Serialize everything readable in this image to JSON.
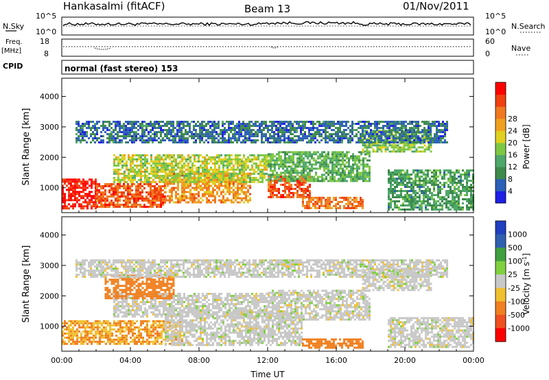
{
  "header": {
    "station": "Hankasalmi (fitACF)",
    "beam": "Beam 13",
    "date": "01/Nov/2011"
  },
  "noise_panel": {
    "left_label": "N.Sky",
    "right_label": "N.Search",
    "left_ticks": [
      "10^5",
      "10^0"
    ],
    "right_ticks": [
      "10^5",
      "10^0"
    ]
  },
  "freq_panel": {
    "left_label_1": "Freq.",
    "left_label_2": "[MHz]",
    "right_label": "Nave",
    "left_ticks": [
      "18",
      "8"
    ],
    "right_ticks": [
      "60",
      "0"
    ]
  },
  "cpid": {
    "label": "CPID",
    "text": "normal (fast stereo) 153"
  },
  "colors": {
    "power": [
      "#1f1fe6",
      "#2b5fb8",
      "#3d8a4c",
      "#4fa86b",
      "#7ec842",
      "#e0d020",
      "#f0a020",
      "#f07820",
      "#f04010",
      "#ff0000"
    ],
    "velocity": [
      "#ff0000",
      "#f05020",
      "#f08020",
      "#f0c030",
      "#c8c8c8",
      "#80d040",
      "#40a040",
      "#3060b0",
      "#2040c0"
    ]
  },
  "chart_data": [
    {
      "type": "heatmap",
      "title": "",
      "xlabel": "",
      "ylabel": "Slant Range [km]",
      "xlim": [
        0,
        24
      ],
      "ylim": [
        180,
        4600
      ],
      "x_ticks": [
        0,
        4,
        8,
        12,
        16,
        20,
        24
      ],
      "y_ticks": [
        1000,
        2000,
        3000,
        4000
      ],
      "colorbar": {
        "label": "Power [dB]",
        "ticks": [
          "4",
          "8",
          "12",
          "16",
          "20",
          "24",
          "28"
        ],
        "range": [
          0,
          32
        ]
      },
      "regions": [
        {
          "t0": 0.0,
          "t1": 2.0,
          "r0": 350,
          "r1": 1300,
          "value": 30
        },
        {
          "t0": 2.0,
          "t1": 6.0,
          "r0": 400,
          "r1": 1150,
          "value": 26
        },
        {
          "t0": 6.0,
          "t1": 11.0,
          "r0": 500,
          "r1": 1500,
          "value": 22
        },
        {
          "t0": 3.0,
          "t1": 12.0,
          "r0": 1200,
          "r1": 2100,
          "value": 16
        },
        {
          "t0": 12.0,
          "t1": 14.5,
          "r0": 700,
          "r1": 1400,
          "value": 26
        },
        {
          "t0": 14.0,
          "t1": 17.5,
          "r0": 300,
          "r1": 700,
          "value": 24
        },
        {
          "t0": 12.0,
          "t1": 18.0,
          "r0": 1200,
          "r1": 2200,
          "value": 12
        },
        {
          "t0": 17.5,
          "t1": 21.5,
          "r0": 2200,
          "r1": 2900,
          "value": 14
        },
        {
          "t0": 0.8,
          "t1": 22.5,
          "r0": 2500,
          "r1": 3200,
          "value": 6
        },
        {
          "t0": 19.0,
          "t1": 24.0,
          "r0": 300,
          "r1": 1600,
          "value": 10
        }
      ]
    },
    {
      "type": "heatmap",
      "title": "",
      "xlabel": "Time UT",
      "ylabel": "Slant Range [km]",
      "xlim": [
        0,
        24
      ],
      "ylim": [
        180,
        4600
      ],
      "x_ticks": [
        "00:00",
        "04:00",
        "08:00",
        "12:00",
        "16:00",
        "20:00",
        "00:00"
      ],
      "y_ticks": [
        1000,
        2000,
        3000,
        4000
      ],
      "colorbar": {
        "label": "Velocity [m s^-1]",
        "ticks": [
          "1000",
          "500",
          "100",
          "25",
          "-25",
          "-100",
          "-500",
          "-1000"
        ]
      },
      "regions": [
        {
          "t0": 0.0,
          "t1": 7.0,
          "r0": 400,
          "r1": 1200,
          "value": -100
        },
        {
          "t0": 6.0,
          "t1": 14.0,
          "r0": 400,
          "r1": 1500,
          "value": 0
        },
        {
          "t0": 3.0,
          "t1": 12.0,
          "r0": 1300,
          "r1": 2100,
          "value": 0
        },
        {
          "t0": 12.0,
          "t1": 18.0,
          "r0": 1200,
          "r1": 2200,
          "value": 0
        },
        {
          "t0": 14.0,
          "t1": 17.5,
          "r0": 300,
          "r1": 600,
          "value": -300
        },
        {
          "t0": 17.5,
          "t1": 21.5,
          "r0": 2200,
          "r1": 2900,
          "value": 0
        },
        {
          "t0": 2.5,
          "t1": 6.5,
          "r0": 1900,
          "r1": 2700,
          "value": -300
        },
        {
          "t0": 0.8,
          "t1": 22.5,
          "r0": 2600,
          "r1": 3200,
          "value": 0
        },
        {
          "t0": 19.0,
          "t1": 24.0,
          "r0": 300,
          "r1": 1300,
          "value": 0
        }
      ]
    }
  ]
}
